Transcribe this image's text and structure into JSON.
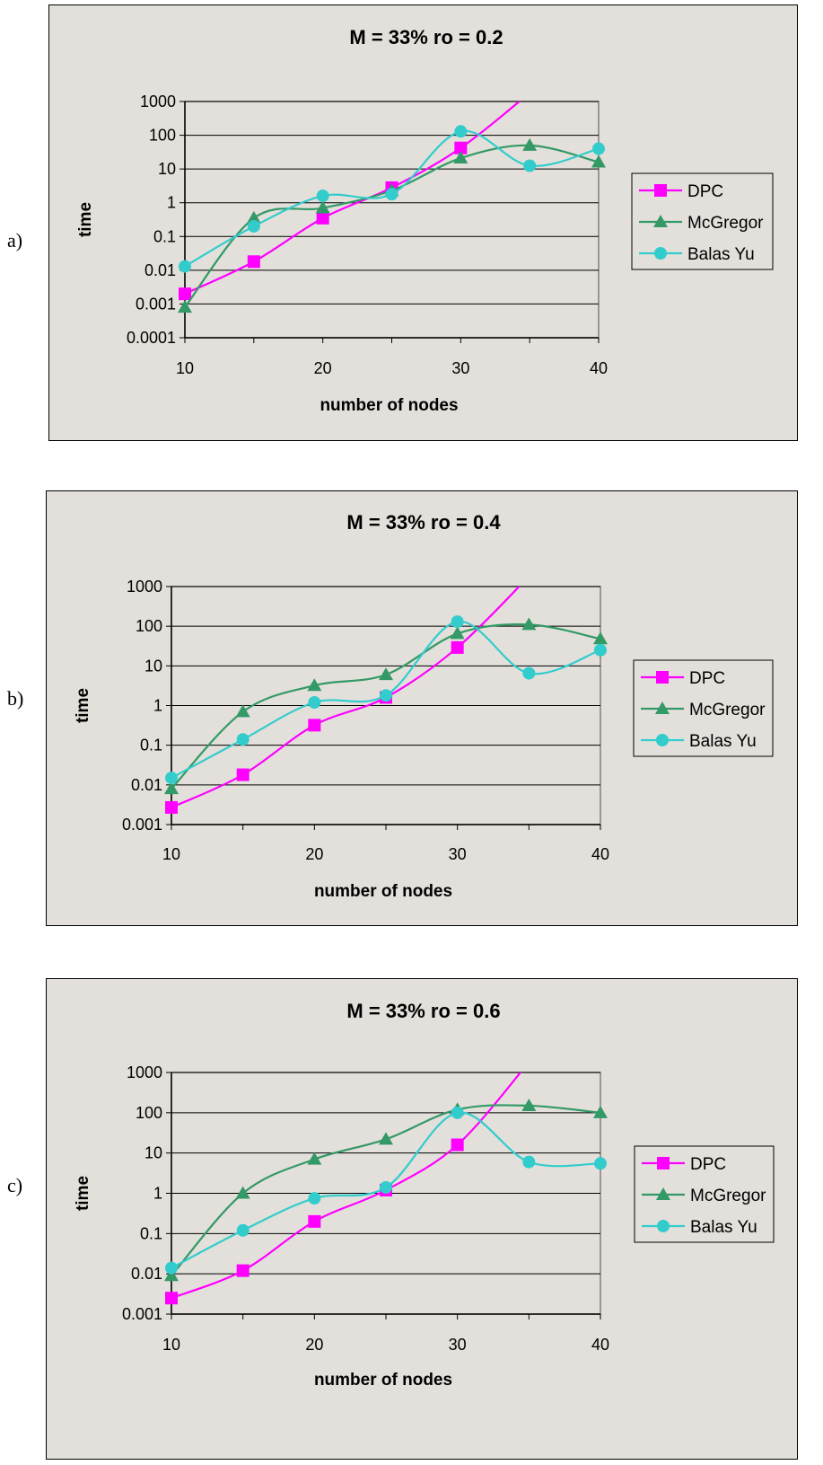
{
  "chart_data": [
    {
      "type": "line",
      "panel_label": "a)",
      "title": "M = 33% ro = 0.2",
      "xlabel": "number of nodes",
      "ylabel": "time",
      "yscale": "log",
      "ylim": [
        0.0001,
        1000
      ],
      "yticks": [
        "0.0001",
        "0.001",
        "0.01",
        "0.1",
        "1",
        "10",
        "100",
        "1000"
      ],
      "xlim": [
        10,
        40
      ],
      "xticks": [
        "10",
        "20",
        "30",
        "40"
      ],
      "grid": "horizontal",
      "legend": "right",
      "x": [
        10,
        15,
        20,
        25,
        30,
        35,
        40
      ],
      "series": [
        {
          "name": "DPC",
          "color": "#ff00ff",
          "marker": "square",
          "values": [
            0.002,
            0.018,
            0.35,
            2.8,
            42,
            1800,
            null
          ]
        },
        {
          "name": "McGregor",
          "color": "#339966",
          "marker": "triangle",
          "values": [
            0.0008,
            0.35,
            0.7,
            2.3,
            21,
            50,
            16
          ]
        },
        {
          "name": "Balas Yu",
          "color": "#33cccc",
          "marker": "circle",
          "values": [
            0.013,
            0.2,
            1.6,
            1.8,
            130,
            12.5,
            40
          ]
        }
      ]
    },
    {
      "type": "line",
      "panel_label": "b)",
      "title": "M = 33% ro = 0.4",
      "xlabel": "number of nodes",
      "ylabel": "time",
      "yscale": "log",
      "ylim": [
        0.001,
        1000
      ],
      "yticks": [
        "0.001",
        "0.01",
        "0.1",
        "1",
        "10",
        "100",
        "1000"
      ],
      "xlim": [
        10,
        40
      ],
      "xticks": [
        "10",
        "20",
        "30",
        "40"
      ],
      "grid": "horizontal",
      "legend": "right",
      "x": [
        10,
        15,
        20,
        25,
        30,
        35,
        40
      ],
      "series": [
        {
          "name": "DPC",
          "color": "#ff00ff",
          "marker": "square",
          "values": [
            0.0027,
            0.018,
            0.32,
            1.6,
            29,
            1800,
            null
          ]
        },
        {
          "name": "McGregor",
          "color": "#339966",
          "marker": "triangle",
          "values": [
            0.008,
            0.7,
            3.2,
            6,
            65,
            110,
            48
          ]
        },
        {
          "name": "Balas Yu",
          "color": "#33cccc",
          "marker": "circle",
          "values": [
            0.015,
            0.14,
            1.2,
            1.8,
            130,
            6.5,
            25
          ]
        }
      ]
    },
    {
      "type": "line",
      "panel_label": "c)",
      "title": "M = 33% ro = 0.6",
      "xlabel": "number of nodes",
      "ylabel": "time",
      "yscale": "log",
      "ylim": [
        0.001,
        1000
      ],
      "yticks": [
        "0.001",
        "0.01",
        "0.1",
        "1",
        "10",
        "100",
        "1000"
      ],
      "xlim": [
        10,
        40
      ],
      "xticks": [
        "10",
        "20",
        "30",
        "40"
      ],
      "grid": "horizontal",
      "legend": "right",
      "x": [
        10,
        15,
        20,
        25,
        30,
        35,
        40
      ],
      "series": [
        {
          "name": "DPC",
          "color": "#ff00ff",
          "marker": "square",
          "values": [
            0.0025,
            0.012,
            0.2,
            1.2,
            16,
            1800,
            null
          ]
        },
        {
          "name": "McGregor",
          "color": "#339966",
          "marker": "triangle",
          "values": [
            0.009,
            1.0,
            7,
            22,
            120,
            150,
            100
          ]
        },
        {
          "name": "Balas Yu",
          "color": "#33cccc",
          "marker": "circle",
          "values": [
            0.014,
            0.12,
            0.75,
            1.4,
            100,
            6,
            5.5
          ]
        }
      ]
    }
  ]
}
